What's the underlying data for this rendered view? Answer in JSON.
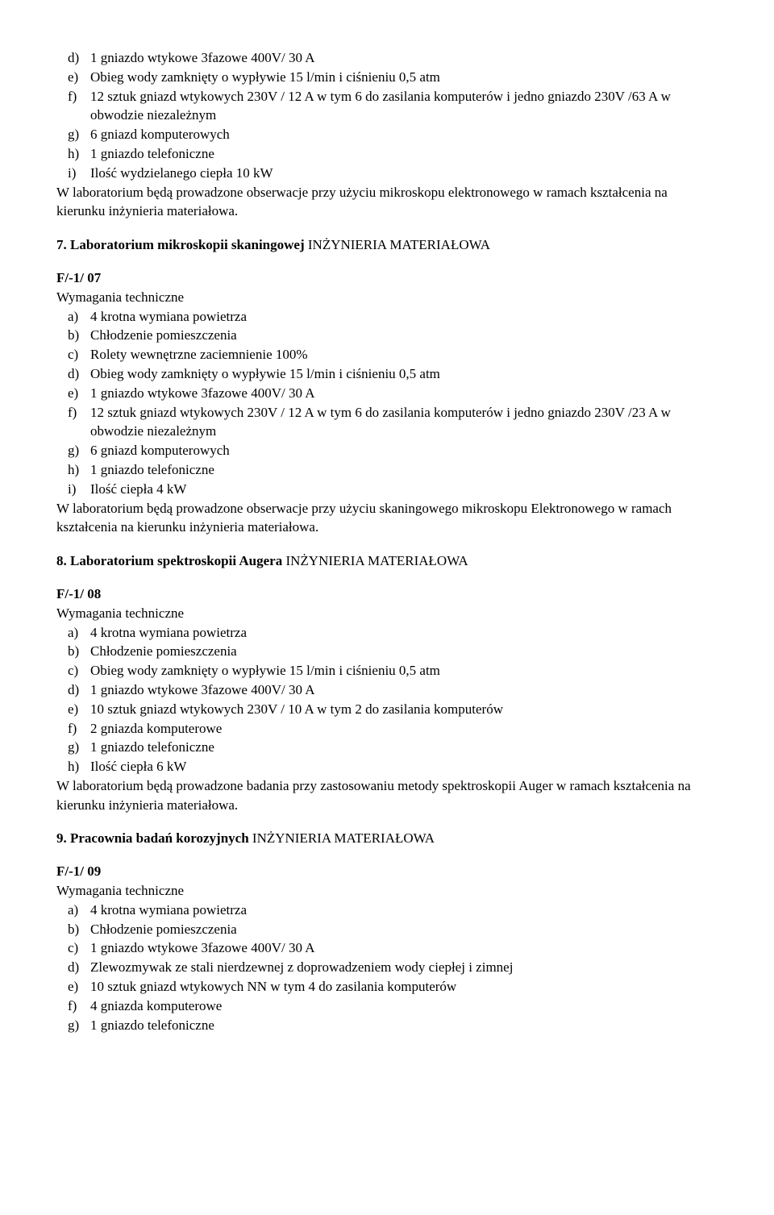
{
  "prelist": {
    "items": [
      {
        "m": "d)",
        "t": "1 gniazdo wtykowe 3fazowe 400V/ 30 A"
      },
      {
        "m": "e)",
        "t": "Obieg wody zamknięty o wypływie 15 l/min i ciśnieniu 0,5 atm"
      },
      {
        "m": "f)",
        "t": "12 sztuk gniazd wtykowych 230V / 12 A w tym 6 do zasilania komputerów i jedno gniazdo 230V /63 A w obwodzie niezależnym"
      },
      {
        "m": "g)",
        "t": "6 gniazd komputerowych"
      },
      {
        "m": "h)",
        "t": "1 gniazdo telefoniczne"
      },
      {
        "m": "i)",
        "t": "Ilość wydzielanego ciepła 10 kW"
      }
    ],
    "after": "W laboratorium będą prowadzone obserwacje przy użyciu mikroskopu elektronowego w ramach kształcenia na kierunku inżynieria materiałowa."
  },
  "sections": [
    {
      "heading_bold": "7. Laboratorium mikroskopii skaningowej",
      "heading_rest": " INŻYNIERIA MATERIAŁOWA",
      "code": "F/-1/ 07",
      "reqline": "Wymagania techniczne",
      "items": [
        {
          "m": "a)",
          "t": "4 krotna wymiana powietrza"
        },
        {
          "m": "b)",
          "t": "Chłodzenie pomieszczenia"
        },
        {
          "m": "c)",
          "t": "Rolety wewnętrzne zaciemnienie 100%"
        },
        {
          "m": "d)",
          "t": "Obieg wody zamknięty o wypływie 15 l/min i ciśnieniu 0,5 atm"
        },
        {
          "m": "e)",
          "t": "1 gniazdo wtykowe 3fazowe 400V/ 30 A"
        },
        {
          "m": "f)",
          "t": "12 sztuk gniazd wtykowych 230V / 12 A w tym 6 do zasilania komputerów i jedno gniazdo 230V /23 A w obwodzie niezależnym"
        },
        {
          "m": "g)",
          "t": "6 gniazd komputerowych"
        },
        {
          "m": "h)",
          "t": "1 gniazdo telefoniczne"
        },
        {
          "m": "i)",
          "t": "Ilość ciepła 4 kW"
        }
      ],
      "after": "W laboratorium będą prowadzone obserwacje przy użyciu skaningowego mikroskopu Elektronowego w ramach kształcenia na kierunku inżynieria materiałowa."
    },
    {
      "heading_bold": "8. Laboratorium spektroskopii Augera",
      "heading_rest": " INŻYNIERIA MATERIAŁOWA",
      "code": "F/-1/ 08",
      "reqline": "Wymagania techniczne",
      "items": [
        {
          "m": "a)",
          "t": "4 krotna wymiana powietrza"
        },
        {
          "m": "b)",
          "t": "Chłodzenie pomieszczenia"
        },
        {
          "m": "c)",
          "t": "Obieg wody zamknięty o wypływie 15 l/min i ciśnieniu 0,5 atm"
        },
        {
          "m": "d)",
          "t": "1 gniazdo wtykowe 3fazowe 400V/ 30 A"
        },
        {
          "m": "e)",
          "t": "10 sztuk gniazd wtykowych 230V / 10 A w tym 2 do zasilania komputerów"
        },
        {
          "m": "f)",
          "t": "2 gniazda komputerowe"
        },
        {
          "m": "g)",
          "t": "1 gniazdo telefoniczne"
        },
        {
          "m": "h)",
          "t": "Ilość ciepła 6 kW"
        }
      ],
      "after": "W laboratorium będą prowadzone badania przy zastosowaniu metody spektroskopii Auger w ramach kształcenia na kierunku inżynieria materiałowa."
    },
    {
      "heading_bold": "9. Pracownia badań korozyjnych",
      "heading_rest": " INŻYNIERIA MATERIAŁOWA",
      "code": "F/-1/ 09",
      "reqline": "Wymagania techniczne",
      "items": [
        {
          "m": "a)",
          "t": "4 krotna wymiana powietrza"
        },
        {
          "m": "b)",
          "t": "Chłodzenie pomieszczenia"
        },
        {
          "m": "c)",
          "t": "1 gniazdo wtykowe 3fazowe 400V/ 30 A"
        },
        {
          "m": "d)",
          "t": "Zlewozmywak ze stali nierdzewnej z doprowadzeniem wody ciepłej i zimnej"
        },
        {
          "m": "e)",
          "t": "10 sztuk gniazd wtykowych NN w tym 4 do zasilania komputerów"
        },
        {
          "m": "f)",
          "t": "4 gniazda komputerowe"
        },
        {
          "m": "g)",
          "t": "1 gniazdo telefoniczne"
        }
      ],
      "after": ""
    }
  ]
}
